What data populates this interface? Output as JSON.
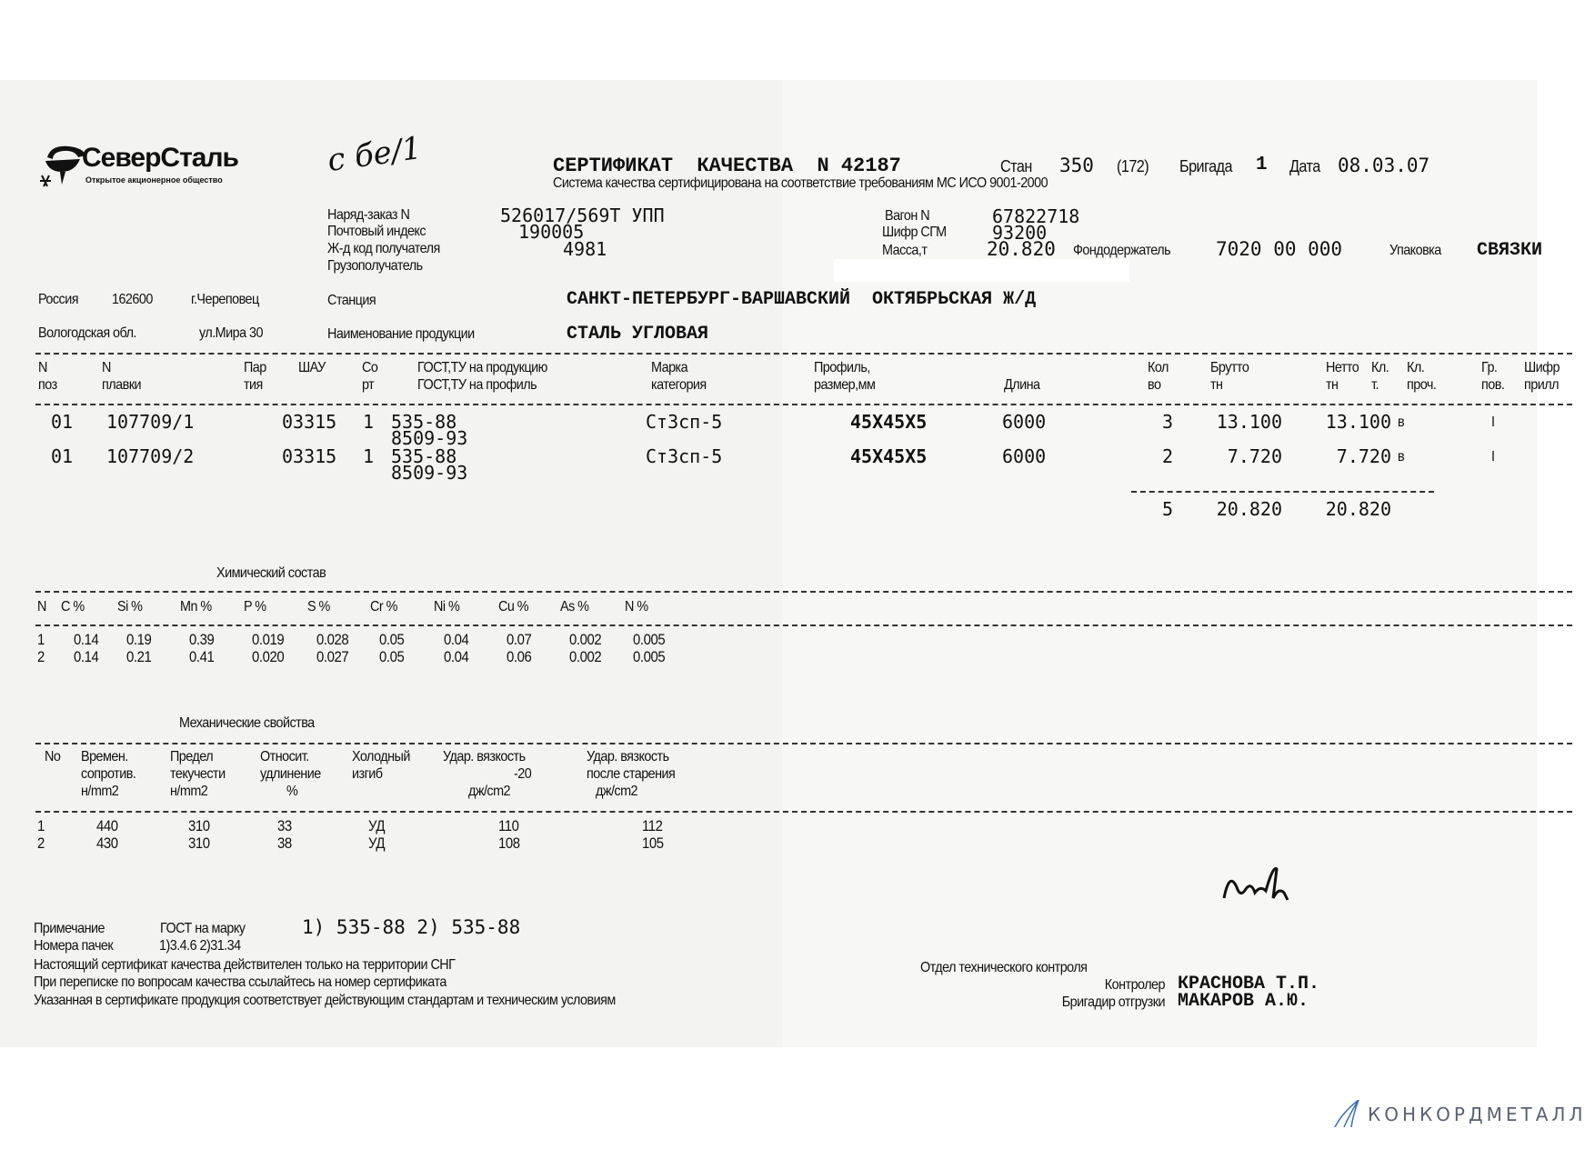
{
  "header": {
    "logo_text": "СеверСталь",
    "logo_subtitle": "Открытое акционерное общество",
    "handwritten_note": "с бе/1",
    "title": "СЕРТИФИКАТ  КАЧЕСТВА  N 42187",
    "stan_label": "Стан",
    "stan_value": "350",
    "stan_extra": "(172)",
    "brigada_label": "Бригада",
    "brigada_value": "1",
    "date_label": "Дата",
    "date_value": "08.03.07",
    "subtitle": "Система качества сертифицирована на соответствие требованиям МС ИСО 9001-2000"
  },
  "order": {
    "order_label": "Наряд-заказ N",
    "order_value": "526017/569Т УПП",
    "postal_label": "Почтовый индекс",
    "postal_value": "190005",
    "rail_code_label": "Ж-д код получателя",
    "rail_code_value": "4981",
    "consignee_label": "Грузополучатель",
    "wagon_label": "Вагон N",
    "wagon_value": "67822718",
    "sgm_label": "Шифр СГМ",
    "sgm_value": "93200",
    "mass_label": "Масса,т",
    "mass_value": "20.820",
    "fund_label": "Фондодержатель",
    "fund_value": "7020 00 000",
    "packing_label": "Упаковка",
    "packing_value": "СВЯЗКИ"
  },
  "address": {
    "country": "Россия",
    "zip": "162600",
    "city": "г.Череповец",
    "region": "Вологодская обл.",
    "street": "ул.Мира 30",
    "station_label": "Станция",
    "station_value": "САНКТ-ПЕТЕРБУРГ-ВАРШАВСКИЙ  ОКТЯБРЬСКАЯ Ж/Д",
    "product_label": "Наименование продукции",
    "product_value": "СТАЛЬ УГЛОВАЯ"
  },
  "main_table": {
    "headers": [
      [
        "N",
        "поз"
      ],
      [
        "N",
        "плавки"
      ],
      [
        "Пар",
        "тия"
      ],
      [
        "ШАУ",
        ""
      ],
      [
        "Со",
        "рт"
      ],
      [
        "ГОСТ,ТУ на продукцию",
        "ГОСТ,ТУ на профиль"
      ],
      [
        "Марка",
        "категория"
      ],
      [
        "Профиль,",
        "размер,мм"
      ],
      [
        "",
        "Длина"
      ],
      [
        "Кол",
        "во"
      ],
      [
        "Брутто",
        "тн"
      ],
      [
        "Нетто",
        "тн"
      ],
      [
        "Кл.",
        "т."
      ],
      [
        "Кл.",
        "проч."
      ],
      [
        "Гр.",
        "пов."
      ],
      [
        "Шифр",
        "прилл"
      ]
    ],
    "rows": [
      {
        "poz": "01",
        "melt": "107709/1",
        "shau": "03315",
        "sort": "1",
        "gost1": "535-88",
        "gost2": "8509-93",
        "grade": "Ст3сп-5",
        "profile": "45X45X5",
        "length": "6000",
        "qty": "3",
        "gross": "13.100",
        "net": "13.100",
        "kl_t": "в",
        "gr": "I"
      },
      {
        "poz": "01",
        "melt": "107709/2",
        "shau": "03315",
        "sort": "1",
        "gost1": "535-88",
        "gost2": "8509-93",
        "grade": "Ст3сп-5",
        "profile": "45X45X5",
        "length": "6000",
        "qty": "2",
        "gross": "7.720",
        "net": "7.720",
        "kl_t": "в",
        "gr": "I"
      }
    ],
    "totals": {
      "qty": "5",
      "gross": "20.820",
      "net": "20.820"
    }
  },
  "chemical": {
    "title": "Химический состав",
    "headers": [
      "N",
      "C %",
      "Si %",
      "Mn %",
      "P %",
      "S %",
      "Cr %",
      "Ni %",
      "Cu %",
      "As %",
      "N %"
    ],
    "rows": [
      [
        "1",
        "0.14",
        "0.19",
        "0.39",
        "0.019",
        "0.028",
        "0.05",
        "0.04",
        "0.07",
        "0.002",
        "0.005"
      ],
      [
        "2",
        "0.14",
        "0.21",
        "0.41",
        "0.020",
        "0.027",
        "0.05",
        "0.04",
        "0.06",
        "0.002",
        "0.005"
      ]
    ]
  },
  "mechanical": {
    "title": "Механические свойства",
    "headers": [
      [
        "No",
        "",
        ""
      ],
      [
        "Времен.",
        "сопротив.",
        "н/mm2"
      ],
      [
        "Предел",
        "текучести",
        "н/mm2"
      ],
      [
        "Относит.",
        "удлинение",
        "%"
      ],
      [
        "Холодный",
        "изгиб",
        ""
      ],
      [
        "Удар. вязкость",
        "-20",
        "дж/cm2"
      ],
      [
        "Удар. вязкость",
        "после старения",
        "дж/cm2"
      ]
    ],
    "rows": [
      [
        "1",
        "440",
        "310",
        "33",
        "УД",
        "110",
        "112"
      ],
      [
        "2",
        "430",
        "310",
        "38",
        "УД",
        "108",
        "105"
      ]
    ]
  },
  "notes": {
    "note_label": "Примечание",
    "gost_label": "ГОСТ на марку",
    "gost_value": "1) 535-88 2) 535-88",
    "packs_label": "Номера пачек",
    "packs_value": "1)3.4.6 2)31.34",
    "line1": "Настоящий сертификат качества действителен только на территории СНГ",
    "line2": "При переписке по вопросам качества ссылайтесь на номер сертификата",
    "line3": "Указанная в сертификате продукция соответствует действующим стандартам и техническим условиям"
  },
  "signatures": {
    "dept": "Отдел технического контроля",
    "controller_label": "Контролер",
    "controller_name": "КРАСНОВА Т.П.",
    "foreman_label": "Бригадир отгрузки",
    "foreman_name": "МАКАРОВ А.Ю."
  },
  "watermark": {
    "text": "КОНКОРДМЕТАЛЛ",
    "color": "#5a6270",
    "icon_color": "#3a6fb0"
  }
}
